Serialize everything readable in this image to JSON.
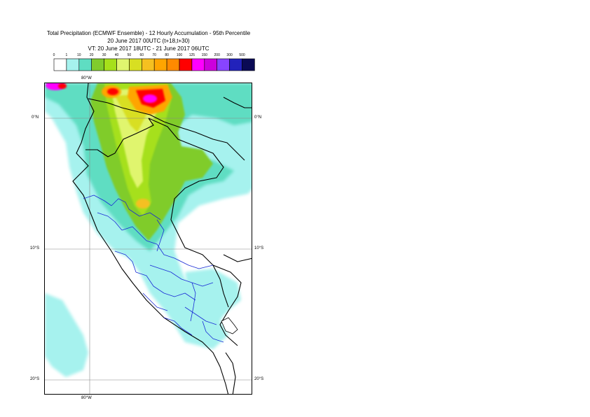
{
  "title": {
    "line1": "Total Precipitation (ECMWF Ensemble) - 12 Hourly Accumulation - 95th Percentile",
    "line2": "20 June 2017 00UTC (t+18,t+30)",
    "line3": "VT: 20 June 2017 18UTC - 21 June 2017 06UTC"
  },
  "legend": {
    "ticks": [
      "0",
      "1",
      "10",
      "20",
      "30",
      "40",
      "50",
      "60",
      "70",
      "80",
      "100",
      "125",
      "150",
      "200",
      "300",
      "500"
    ],
    "colors": [
      "#ffffff",
      "#a6f2ee",
      "#5fddc2",
      "#80cc2c",
      "#a6e01a",
      "#e0f56e",
      "#d8df22",
      "#f5c020",
      "#ffa500",
      "#ff8a00",
      "#ff0000",
      "#ff00ff",
      "#cc00dd",
      "#8844ff",
      "#2222bb",
      "#0a0a55"
    ]
  },
  "axes": {
    "top_lon": "80°W",
    "bottom_lon": "80°W",
    "lat_0_left": "0°N",
    "lat_0_right": "0°N",
    "lat_10_left": "10°S",
    "lat_10_right": "10°S",
    "lat_20_left": "20°S",
    "lat_20_right": "20°S"
  }
}
